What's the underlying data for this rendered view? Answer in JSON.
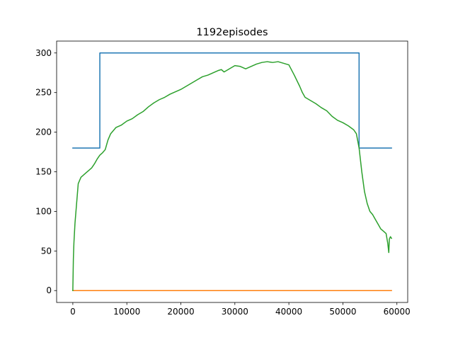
{
  "chart_data": {
    "type": "line",
    "title": "1192episodes",
    "xlabel": "",
    "ylabel": "",
    "xlim": [
      -3000,
      62000
    ],
    "ylim": [
      -15,
      315
    ],
    "x_ticks": [
      0,
      10000,
      20000,
      30000,
      40000,
      50000,
      60000
    ],
    "x_tick_labels": [
      "0",
      "10000",
      "20000",
      "30000",
      "40000",
      "50000",
      "60000"
    ],
    "y_ticks": [
      0,
      50,
      100,
      150,
      200,
      250,
      300
    ],
    "y_tick_labels": [
      "0",
      "50",
      "100",
      "150",
      "200",
      "250",
      "300"
    ],
    "grid": false,
    "legend": false,
    "series": [
      {
        "color": "#1f77b4",
        "x": [
          0,
          5000,
          5000,
          53000,
          53000,
          59000
        ],
        "y": [
          180,
          180,
          300,
          300,
          180,
          180
        ]
      },
      {
        "color": "#ff7f0e",
        "x": [
          0,
          59000
        ],
        "y": [
          0,
          0
        ]
      },
      {
        "color": "#2ca02c",
        "x": [
          0,
          100,
          200,
          400,
          700,
          1000,
          1500,
          2000,
          2500,
          3000,
          3500,
          4000,
          4500,
          5000,
          5500,
          6000,
          6500,
          7000,
          7500,
          8000,
          9000,
          10000,
          11000,
          12000,
          13000,
          14000,
          15000,
          16000,
          17000,
          18000,
          19000,
          20000,
          21000,
          22000,
          23000,
          24000,
          25000,
          26000,
          27000,
          27500,
          28000,
          29000,
          30000,
          31000,
          32000,
          33000,
          34000,
          35000,
          36000,
          37000,
          38000,
          39000,
          40000,
          41000,
          42000,
          42500,
          43000,
          44000,
          45000,
          46000,
          47000,
          48000,
          49000,
          50000,
          51000,
          52000,
          52500,
          53000,
          53500,
          54000,
          54500,
          55000,
          55500,
          56000,
          56500,
          57000,
          57500,
          58000,
          58300,
          58500,
          58600,
          58800,
          59000
        ],
        "y": [
          0,
          40,
          60,
          85,
          110,
          135,
          143,
          146,
          149,
          152,
          155,
          160,
          166,
          171,
          174,
          178,
          190,
          198,
          202,
          206,
          209,
          214,
          217,
          222,
          226,
          232,
          237,
          241,
          244,
          248,
          251,
          254,
          258,
          262,
          266,
          270,
          272,
          275,
          278,
          279,
          276,
          280,
          284,
          283,
          280,
          283,
          286,
          288,
          289,
          288,
          289,
          287,
          285,
          272,
          258,
          250,
          244,
          240,
          236,
          231,
          227,
          220,
          215,
          212,
          208,
          203,
          198,
          180,
          150,
          125,
          110,
          100,
          96,
          90,
          84,
          78,
          75,
          72,
          60,
          48,
          65,
          68,
          66
        ]
      }
    ]
  }
}
